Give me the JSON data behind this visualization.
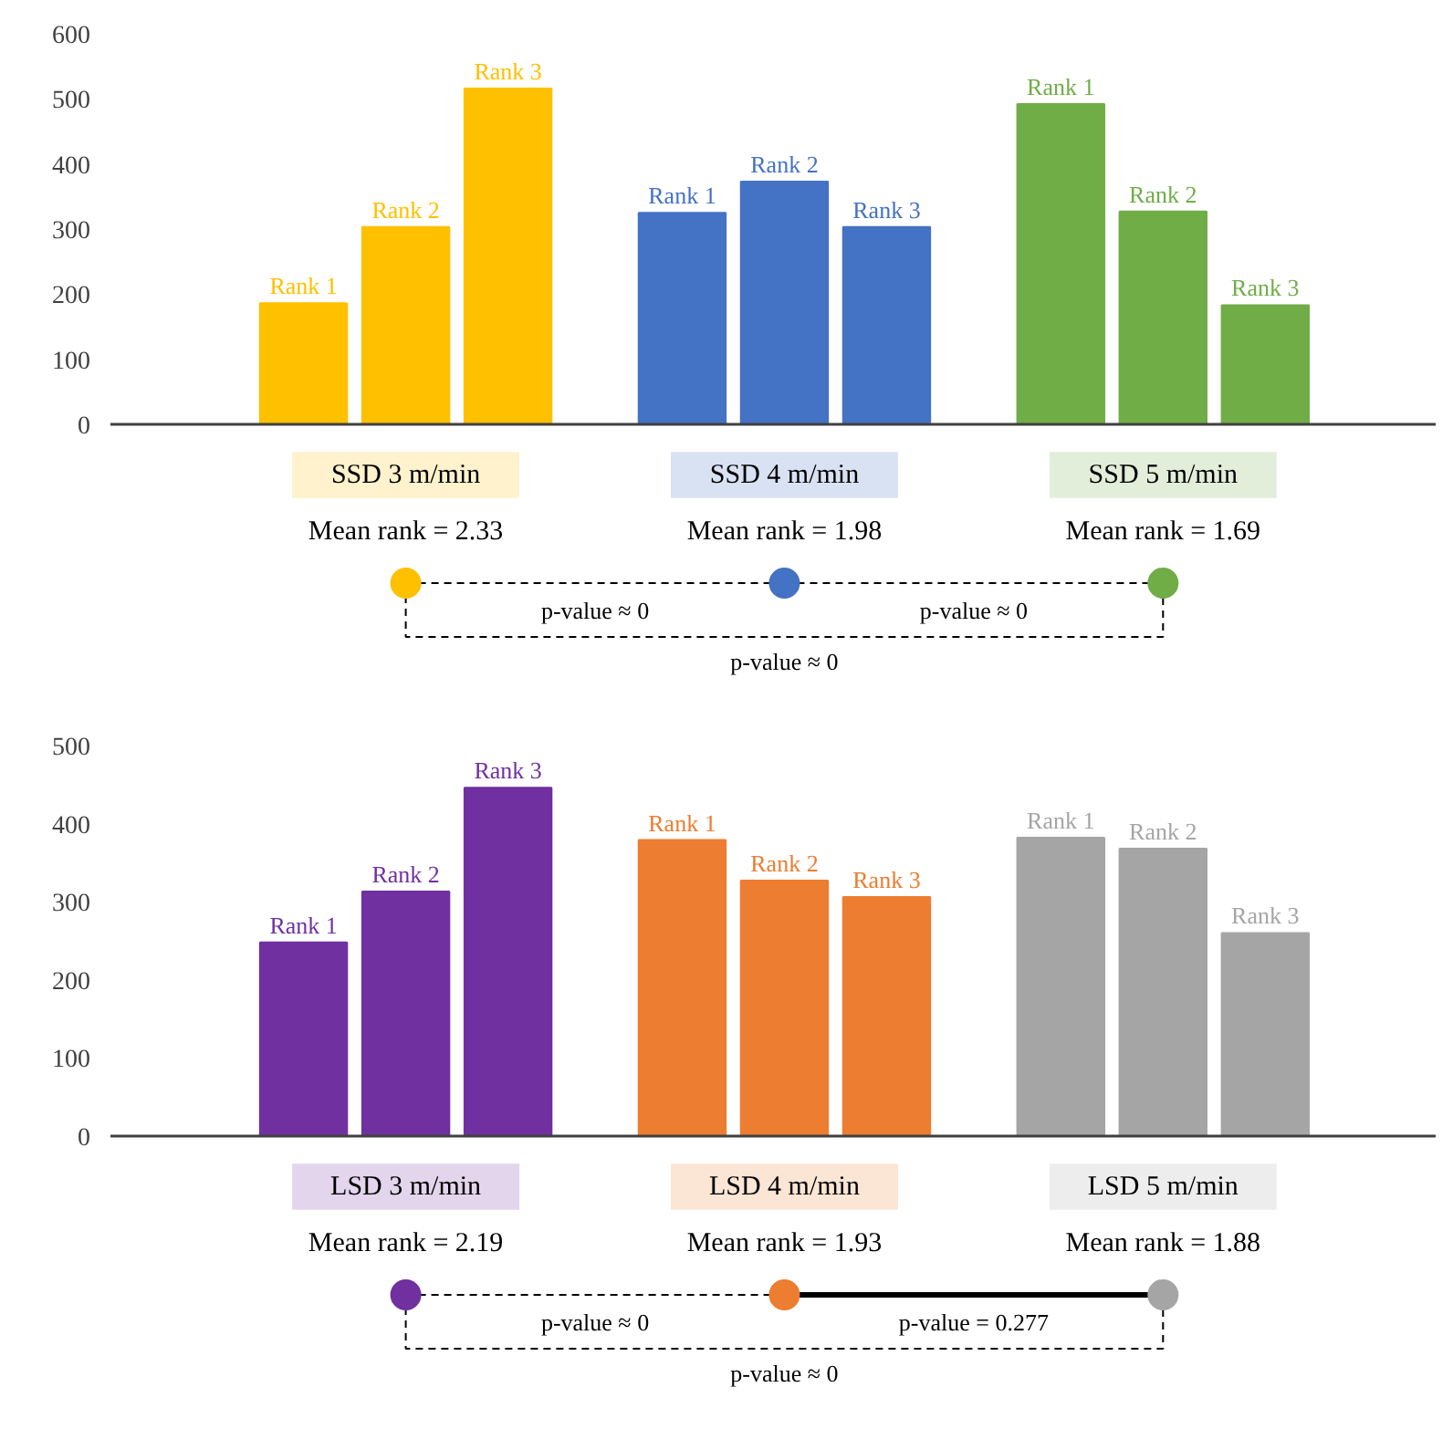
{
  "chart_data": [
    {
      "type": "bar",
      "categories": [
        "SSD 3 m/min",
        "SSD 4 m/min",
        "SSD 5 m/min"
      ],
      "series": [
        {
          "name": "Rank 1",
          "colors": [
            "#ffc000",
            "#4472c4",
            "#70ad47"
          ],
          "values": [
            186,
            325,
            492
          ]
        },
        {
          "name": "Rank 2",
          "colors": [
            "#ffc000",
            "#4472c4",
            "#70ad47"
          ],
          "values": [
            303,
            373,
            327
          ]
        },
        {
          "name": "Rank 3",
          "colors": [
            "#ffc000",
            "#4472c4",
            "#70ad47"
          ],
          "values": [
            516,
            303,
            183
          ]
        }
      ],
      "ylim": [
        0,
        600
      ],
      "yticks": [
        0,
        100,
        200,
        300,
        400,
        500,
        600
      ],
      "annotations": [
        "Mean rank = 2.33",
        "Mean rank = 1.98",
        "Mean rank = 1.69",
        "p-value ≈ 0",
        "p-value ≈ 0",
        "p-value ≈ 0"
      ]
    },
    {
      "type": "bar",
      "categories": [
        "LSD 3 m/min",
        "LSD 4 m/min",
        "LSD 5 m/min"
      ],
      "series": [
        {
          "name": "Rank 1",
          "colors": [
            "#7030a0",
            "#ed7d31",
            "#a5a5a5"
          ],
          "values": [
            248,
            379,
            382
          ]
        },
        {
          "name": "Rank 2",
          "colors": [
            "#7030a0",
            "#ed7d31",
            "#a5a5a5"
          ],
          "values": [
            313,
            327,
            368
          ]
        },
        {
          "name": "Rank 3",
          "colors": [
            "#7030a0",
            "#ed7d31",
            "#a5a5a5"
          ],
          "values": [
            446,
            306,
            260
          ]
        }
      ],
      "ylim": [
        0,
        500
      ],
      "yticks": [
        0,
        100,
        200,
        300,
        400,
        500
      ],
      "annotations": [
        "Mean rank = 2.19",
        "Mean rank = 1.93",
        "Mean rank = 1.88",
        "p-value ≈ 0",
        "p-value = 0.277",
        "p-value ≈ 0"
      ]
    }
  ]
}
